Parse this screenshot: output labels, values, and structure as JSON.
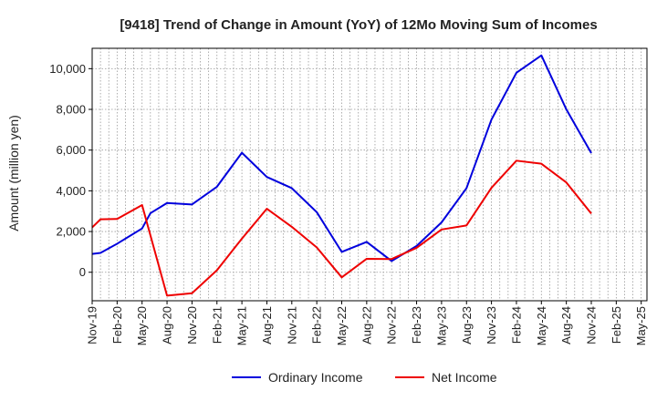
{
  "chart_data": {
    "type": "line",
    "title": "[9418]  Trend of Change in Amount (YoY) of 12Mo Moving Sum of Incomes",
    "ylabel": "Amount (million yen)",
    "xlabel": "",
    "ylim": [
      -1400,
      11000
    ],
    "yticks": [
      0,
      2000,
      4000,
      6000,
      8000,
      10000
    ],
    "ytick_labels": [
      "0",
      "2,000",
      "4,000",
      "6,000",
      "8,000",
      "10,000"
    ],
    "x_tick_labels": [
      "Nov-19",
      "Feb-20",
      "May-20",
      "Aug-20",
      "Nov-20",
      "Feb-21",
      "May-21",
      "Aug-21",
      "Nov-21",
      "Feb-22",
      "May-22",
      "Aug-22",
      "Nov-22",
      "Feb-23",
      "May-23",
      "Aug-23",
      "Nov-23",
      "Feb-24",
      "May-24",
      "Aug-24",
      "Nov-24",
      "Feb-25",
      "May-25"
    ],
    "grid": true,
    "legend_position": "bottom-center",
    "x": [
      "Nov-19",
      "Dec-19",
      "Jan-20",
      "Feb-20",
      "Mar-20",
      "Apr-20",
      "May-20",
      "Jun-20",
      "Jul-20",
      "Aug-20",
      "Sep-20",
      "Oct-20",
      "Nov-20",
      "Dec-20",
      "Jan-21",
      "Feb-21",
      "Mar-21",
      "Apr-21",
      "May-21",
      "Jun-21",
      "Jul-21",
      "Aug-21",
      "Sep-21",
      "Oct-21",
      "Nov-21",
      "Dec-21",
      "Jan-22",
      "Feb-22",
      "Mar-22",
      "Apr-22",
      "May-22",
      "Jun-22",
      "Jul-22",
      "Aug-22",
      "Sep-22",
      "Oct-22",
      "Nov-22",
      "Dec-22",
      "Jan-23",
      "Feb-23",
      "Mar-23",
      "Apr-23",
      "May-23",
      "Jun-23",
      "Jul-23",
      "Aug-23",
      "Sep-23",
      "Oct-23",
      "Nov-23",
      "Dec-23",
      "Jan-24",
      "Feb-24",
      "Mar-24",
      "Apr-24",
      "May-24",
      "Jun-24",
      "Jul-24",
      "Aug-24",
      "Sep-24",
      "Oct-24",
      "Nov-24"
    ],
    "series": [
      {
        "name": "Ordinary Income",
        "color": "#0000dd",
        "values": [
          900,
          950,
          null,
          1400,
          null,
          null,
          2150,
          2900,
          null,
          3400,
          null,
          null,
          3330,
          null,
          null,
          4200,
          null,
          null,
          5870,
          null,
          null,
          4680,
          null,
          null,
          4130,
          null,
          null,
          2950,
          null,
          null,
          1000,
          null,
          null,
          1490,
          null,
          null,
          550,
          null,
          null,
          1290,
          null,
          null,
          2450,
          null,
          null,
          4130,
          null,
          null,
          7500,
          null,
          null,
          9800,
          null,
          null,
          10650,
          null,
          null,
          8000,
          null,
          null,
          5850
        ]
      },
      {
        "name": "Net Income",
        "color": "#ee0000",
        "values": [
          2200,
          2600,
          null,
          2620,
          null,
          null,
          3300,
          null,
          null,
          -1150,
          null,
          null,
          -1030,
          null,
          null,
          100,
          null,
          null,
          1650,
          null,
          null,
          3120,
          null,
          null,
          2230,
          null,
          null,
          1220,
          null,
          null,
          -250,
          null,
          null,
          660,
          null,
          null,
          650,
          null,
          null,
          1200,
          null,
          null,
          2100,
          null,
          null,
          2300,
          null,
          null,
          4150,
          null,
          null,
          5480,
          null,
          null,
          5330,
          null,
          null,
          4410,
          null,
          null,
          2880
        ]
      }
    ]
  }
}
